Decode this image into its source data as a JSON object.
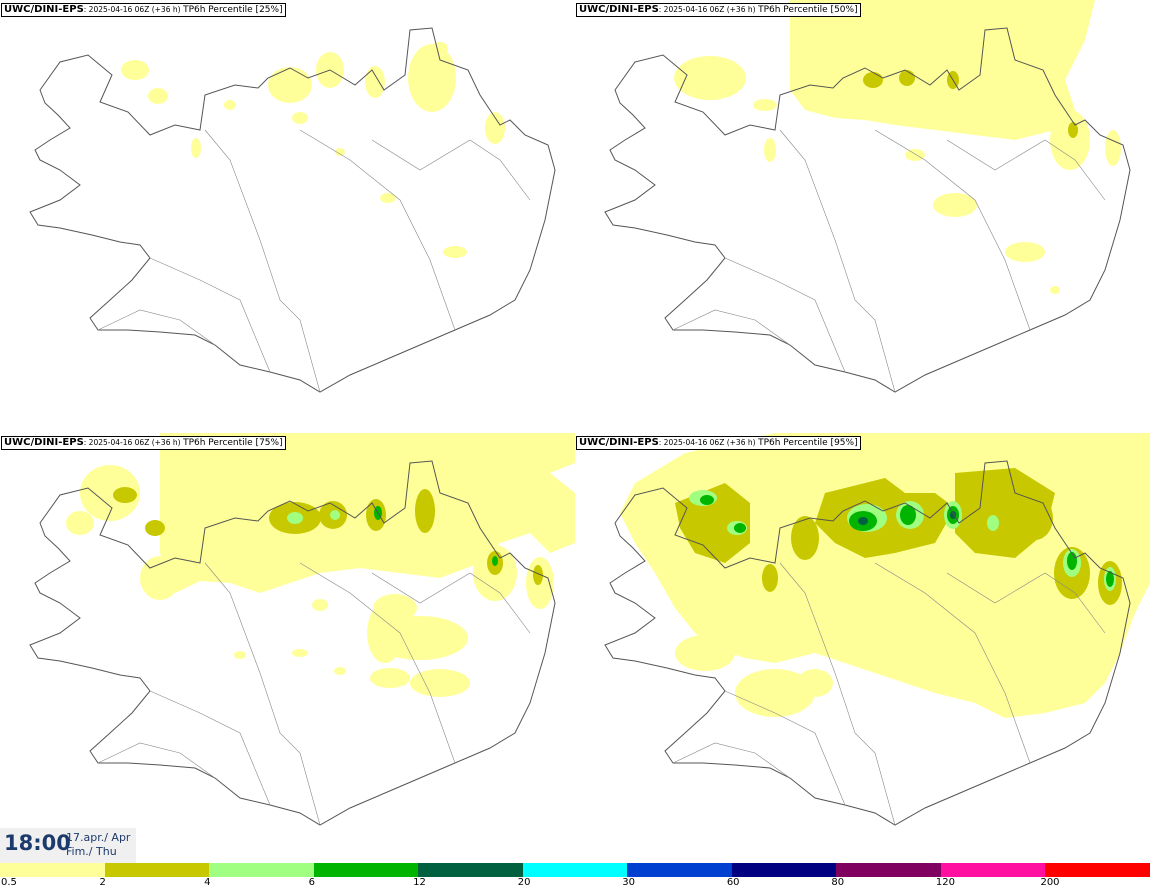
{
  "panels": [
    {
      "model": "UWC/DINI-EPS",
      "meta": ": 2025-04-16 06Z (+36 h)",
      "field": "TP6h Percentile [25%]"
    },
    {
      "model": "UWC/DINI-EPS",
      "meta": ": 2025-04-16 06Z (+36 h)",
      "field": "TP6h Percentile [50%]"
    },
    {
      "model": "UWC/DINI-EPS",
      "meta": ": 2025-04-16 06Z (+36 h)",
      "field": "TP6h Percentile [75%]"
    },
    {
      "model": "UWC/DINI-EPS",
      "meta": ": 2025-04-16 06Z (+36 h)",
      "field": "TP6h Percentile [95%]"
    }
  ],
  "valid_time": {
    "time": "18:00",
    "date_line1": "17.apr./ Apr",
    "date_line2": "Fim./ Thu"
  },
  "legend": {
    "colors": [
      "#ffff99",
      "#c8c800",
      "#a0ff80",
      "#00b400",
      "#006040",
      "#00ffff",
      "#0040d0",
      "#000080",
      "#800060",
      "#ff10a0",
      "#ff0000"
    ],
    "tick_labels": [
      "0.5",
      "2",
      "4",
      "6",
      "12",
      "20",
      "30",
      "60",
      "80",
      "120",
      "200"
    ]
  },
  "palette": {
    "coast": "#555555",
    "yellow": "#ffff99",
    "olive": "#c8c800",
    "lightgreen": "#a0ff80",
    "green": "#00b400",
    "darkgreen": "#006040"
  }
}
